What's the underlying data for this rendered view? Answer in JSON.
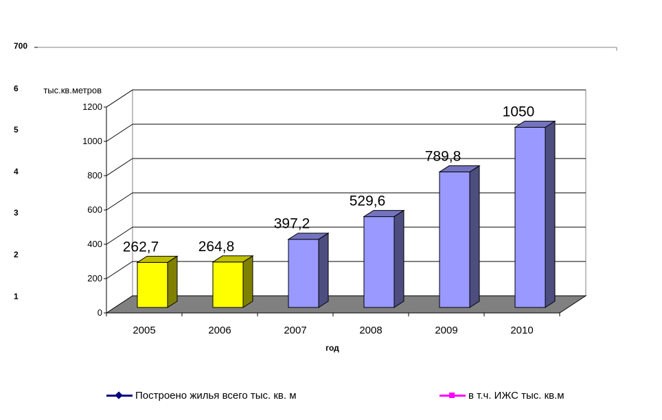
{
  "outer_axis": {
    "top_label": "700",
    "tick_labels": [
      "6",
      "5",
      "4",
      "3",
      "2",
      "1"
    ]
  },
  "legend": [
    {
      "label": "Построено жилья всего тыс. кв. м",
      "color": "#000080",
      "marker": "diamond"
    },
    {
      "label": "в т.ч. ИЖС тыс. кв.м",
      "color": "#ff00ff",
      "marker": "square"
    }
  ],
  "chart_data": {
    "type": "bar",
    "categories": [
      "2005",
      "2006",
      "2007",
      "2008",
      "2009",
      "2010"
    ],
    "values": [
      262.7,
      264.8,
      397.2,
      529.6,
      789.8,
      1050
    ],
    "data_labels": [
      "262,7",
      "264,8",
      "397,2",
      "529,6",
      "789,8",
      "1050"
    ],
    "bar_colors": [
      "#ffff00",
      "#ffff00",
      "#9999ff",
      "#9999ff",
      "#9999ff",
      "#9999ff"
    ],
    "ylabel": "тыс.кв.метров",
    "xlabel": "год",
    "ylim": [
      0,
      1200
    ],
    "yticks": [
      "0",
      "200",
      "400",
      "600",
      "800",
      "1000",
      "1200"
    ],
    "grid": true,
    "floor_color": "#808080"
  }
}
